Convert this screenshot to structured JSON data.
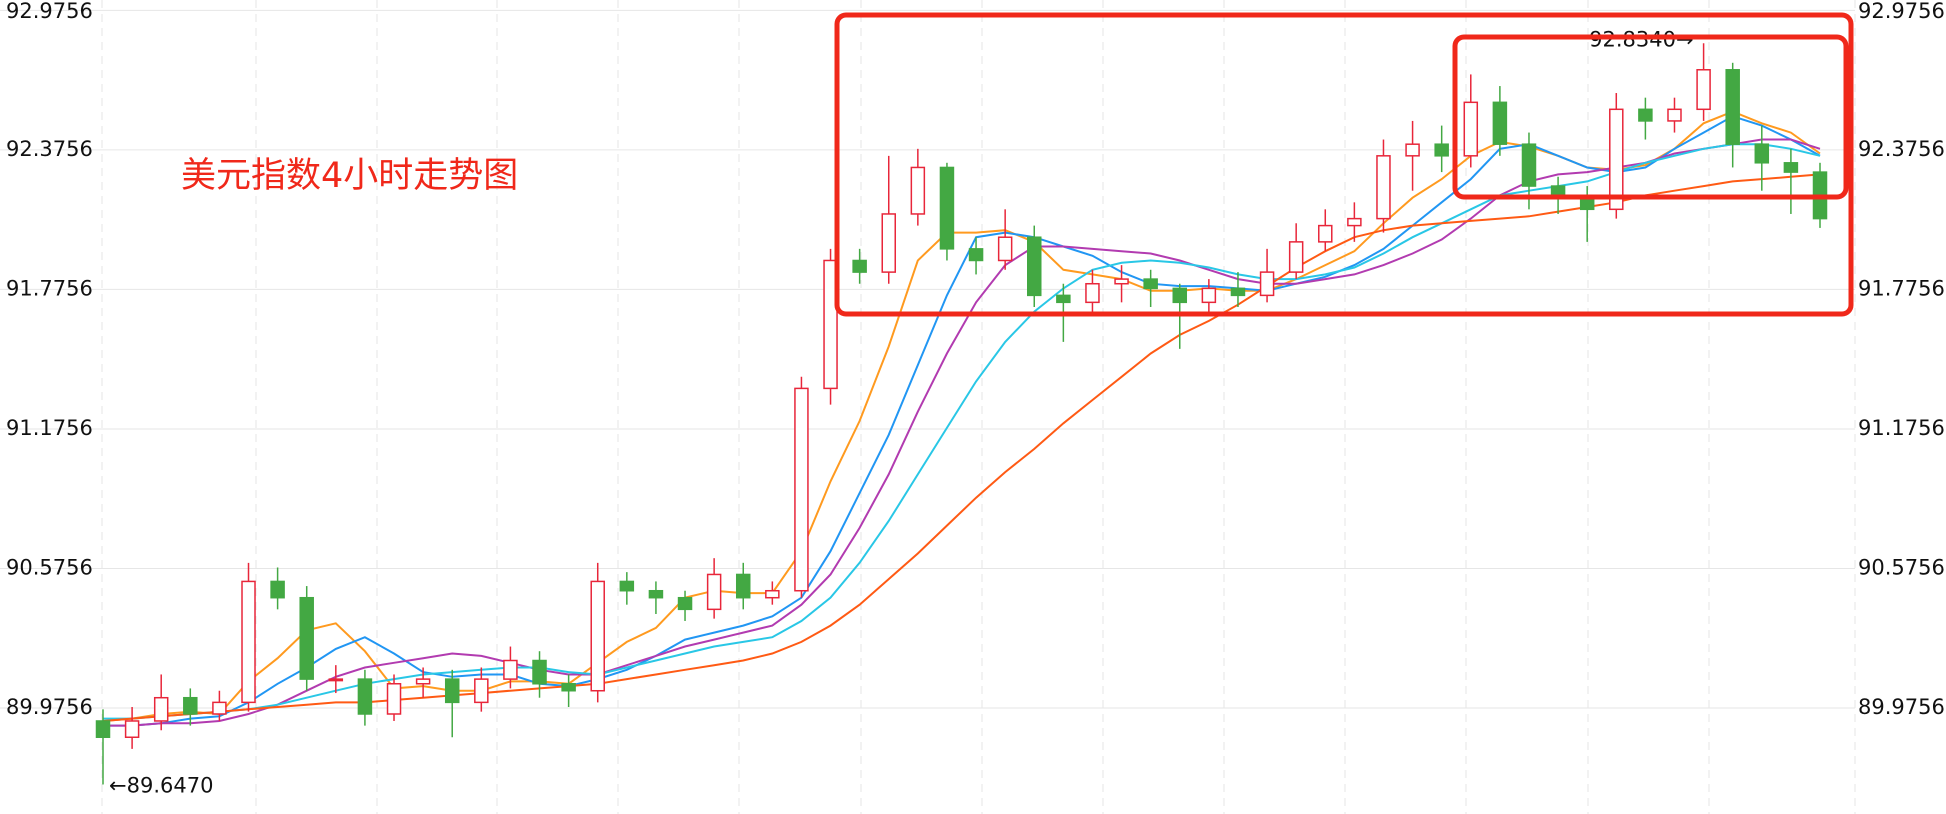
{
  "chart_data": {
    "type": "candlestick",
    "title": "美元指数4小时走势图",
    "open": [
      89.92,
      89.85,
      89.92,
      90.02,
      89.95,
      90.0,
      90.52,
      90.45,
      90.1,
      90.1,
      89.95,
      90.08,
      90.1,
      90.0,
      90.1,
      90.18,
      90.08,
      90.05,
      90.52,
      90.48,
      90.45,
      90.4,
      90.55,
      90.45,
      90.48,
      91.35,
      91.9,
      91.85,
      92.1,
      92.3,
      91.95,
      91.9,
      92.0,
      91.75,
      91.72,
      91.8,
      91.82,
      91.78,
      91.72,
      91.78,
      91.75,
      91.85,
      91.98,
      92.05,
      92.08,
      92.35,
      92.4,
      92.35,
      92.58,
      92.4,
      92.22,
      92.18,
      92.12,
      92.55,
      92.5,
      92.55,
      92.72,
      92.4,
      92.32,
      92.28
    ],
    "high": [
      89.97,
      89.98,
      90.12,
      90.06,
      90.05,
      90.6,
      90.58,
      90.5,
      90.16,
      90.14,
      90.12,
      90.15,
      90.14,
      90.15,
      90.24,
      90.22,
      90.12,
      90.6,
      90.56,
      90.52,
      90.48,
      90.62,
      90.6,
      90.52,
      91.4,
      91.95,
      91.95,
      92.35,
      92.38,
      92.32,
      92.0,
      92.12,
      92.05,
      91.8,
      91.86,
      91.88,
      91.86,
      91.8,
      91.82,
      91.85,
      91.95,
      92.06,
      92.12,
      92.15,
      92.42,
      92.5,
      92.48,
      92.7,
      92.65,
      92.45,
      92.26,
      92.22,
      92.62,
      92.6,
      92.6,
      92.834,
      92.75,
      92.48,
      92.38,
      92.32
    ],
    "low": [
      89.647,
      89.8,
      89.88,
      89.9,
      89.92,
      89.96,
      90.4,
      90.05,
      90.04,
      89.9,
      89.92,
      90.02,
      89.85,
      89.96,
      90.06,
      90.02,
      89.98,
      90.0,
      90.42,
      90.38,
      90.35,
      90.36,
      90.4,
      90.42,
      90.45,
      91.28,
      91.8,
      91.8,
      92.05,
      91.9,
      91.84,
      91.86,
      91.7,
      91.55,
      91.68,
      91.72,
      91.7,
      91.52,
      91.66,
      91.7,
      91.72,
      91.82,
      91.94,
      91.98,
      92.02,
      92.2,
      92.28,
      92.3,
      92.35,
      92.12,
      92.1,
      91.98,
      92.08,
      92.42,
      92.45,
      92.5,
      92.3,
      92.2,
      92.1,
      92.04
    ],
    "close": [
      89.85,
      89.92,
      90.02,
      89.95,
      90.0,
      90.52,
      90.45,
      90.1,
      90.1,
      89.95,
      90.08,
      90.1,
      90.0,
      90.1,
      90.18,
      90.08,
      90.05,
      90.52,
      90.48,
      90.45,
      90.4,
      90.55,
      90.45,
      90.48,
      91.35,
      91.9,
      91.85,
      92.1,
      92.3,
      91.95,
      91.9,
      92.0,
      91.75,
      91.72,
      91.8,
      91.82,
      91.78,
      91.72,
      91.78,
      91.75,
      91.85,
      91.98,
      92.05,
      92.08,
      92.35,
      92.4,
      92.35,
      92.58,
      92.4,
      92.22,
      92.18,
      92.12,
      92.55,
      92.5,
      92.55,
      92.72,
      92.4,
      92.32,
      92.28,
      92.08
    ],
    "up_color": "#e8263a",
    "down_color": "#43a843",
    "series": [
      {
        "color": "#ff9a1f",
        "values": [
          89.92,
          89.93,
          89.95,
          89.96,
          89.95,
          90.09,
          90.19,
          90.31,
          90.34,
          90.22,
          90.06,
          90.07,
          90.05,
          90.05,
          90.09,
          90.09,
          90.08,
          90.17,
          90.26,
          90.32,
          90.45,
          90.48,
          90.47,
          90.47,
          90.65,
          90.95,
          91.21,
          91.53,
          91.9,
          92.02,
          92.02,
          92.03,
          91.98,
          91.86,
          91.84,
          91.82,
          91.77,
          91.77,
          91.78,
          91.77,
          91.77,
          91.82,
          91.88,
          91.94,
          92.06,
          92.17,
          92.25,
          92.35,
          92.41,
          92.39,
          92.35,
          92.3,
          92.29,
          92.31,
          92.38,
          92.49,
          92.54,
          92.49,
          92.45,
          92.36
        ]
      },
      {
        "color": "#2196f3",
        "values": [
          89.9,
          89.9,
          89.91,
          89.93,
          89.94,
          90.0,
          90.08,
          90.15,
          90.23,
          90.28,
          90.21,
          90.13,
          90.11,
          90.12,
          90.12,
          90.08,
          90.07,
          90.1,
          90.14,
          90.2,
          90.27,
          90.3,
          90.33,
          90.37,
          90.45,
          90.65,
          90.9,
          91.15,
          91.45,
          91.75,
          92.0,
          92.02,
          92.0,
          91.96,
          91.92,
          91.85,
          91.8,
          91.79,
          91.79,
          91.78,
          91.77,
          91.8,
          91.83,
          91.88,
          91.95,
          92.05,
          92.15,
          92.25,
          92.38,
          92.4,
          92.35,
          92.3,
          92.28,
          92.3,
          92.38,
          92.45,
          92.52,
          92.48,
          92.42,
          92.35
        ]
      },
      {
        "color": "#b23bb0",
        "values": [
          89.9,
          89.9,
          89.91,
          89.91,
          89.92,
          89.95,
          89.99,
          90.05,
          90.11,
          90.15,
          90.17,
          90.19,
          90.21,
          90.2,
          90.17,
          90.14,
          90.12,
          90.12,
          90.16,
          90.2,
          90.24,
          90.27,
          90.3,
          90.33,
          90.42,
          90.55,
          90.75,
          90.98,
          91.25,
          91.5,
          91.72,
          91.88,
          91.96,
          91.96,
          91.95,
          91.94,
          91.93,
          91.9,
          91.86,
          91.82,
          91.8,
          91.8,
          91.82,
          91.84,
          91.88,
          91.93,
          91.99,
          92.08,
          92.18,
          92.24,
          92.27,
          92.28,
          92.3,
          92.32,
          92.36,
          92.38,
          92.4,
          92.42,
          92.42,
          92.38
        ]
      },
      {
        "color": "#29c7e6",
        "values": [
          89.93,
          89.93,
          89.94,
          89.95,
          89.96,
          89.97,
          89.99,
          90.02,
          90.05,
          90.08,
          90.1,
          90.12,
          90.13,
          90.14,
          90.15,
          90.15,
          90.13,
          90.12,
          90.15,
          90.18,
          90.21,
          90.24,
          90.26,
          90.28,
          90.35,
          90.45,
          90.6,
          90.78,
          90.98,
          91.18,
          91.38,
          91.55,
          91.68,
          91.78,
          91.86,
          91.89,
          91.9,
          91.89,
          91.87,
          91.84,
          91.82,
          91.82,
          91.84,
          91.87,
          91.93,
          92.0,
          92.06,
          92.12,
          92.18,
          92.2,
          92.22,
          92.24,
          92.28,
          92.32,
          92.35,
          92.38,
          92.4,
          92.4,
          92.38,
          92.35
        ]
      },
      {
        "color": "#ff5a14",
        "values": [
          89.92,
          89.93,
          89.94,
          89.95,
          89.96,
          89.97,
          89.98,
          89.99,
          90.0,
          90.0,
          90.01,
          90.02,
          90.03,
          90.04,
          90.05,
          90.06,
          90.07,
          90.08,
          90.1,
          90.12,
          90.14,
          90.16,
          90.18,
          90.21,
          90.26,
          90.33,
          90.42,
          90.53,
          90.64,
          90.76,
          90.88,
          90.99,
          91.09,
          91.2,
          91.3,
          91.4,
          91.5,
          91.58,
          91.64,
          91.71,
          91.79,
          91.87,
          91.94,
          92.0,
          92.03,
          92.05,
          92.06,
          92.07,
          92.08,
          92.09,
          92.11,
          92.13,
          92.15,
          92.18,
          92.2,
          92.22,
          92.24,
          92.25,
          92.26,
          92.27
        ]
      }
    ],
    "annotations": [
      "92.8340→",
      "←89.6470"
    ],
    "ylim": [
      89.52,
      93.02
    ],
    "yticks": [
      89.9756,
      90.5756,
      91.1756,
      91.7756,
      92.3756,
      92.9756
    ],
    "grid": true
  }
}
